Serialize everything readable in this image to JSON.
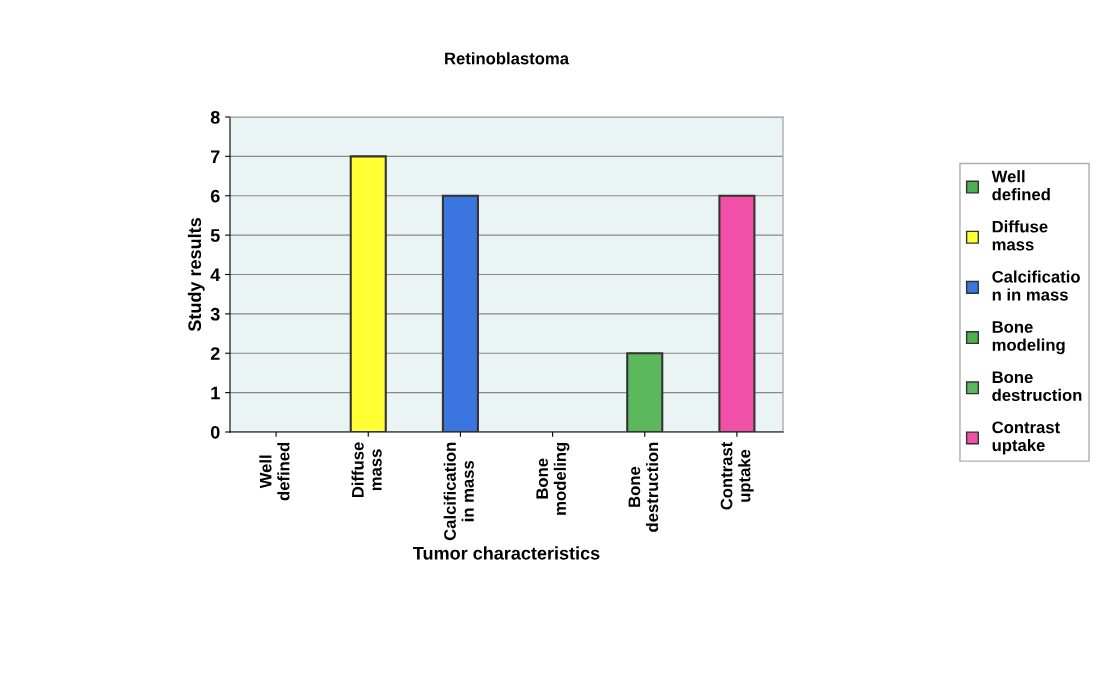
{
  "chart_data": {
    "type": "bar",
    "title": "Retinoblastoma",
    "xlabel": "Tumor characteristics",
    "ylabel": "Study results",
    "categories": [
      "Well defined",
      "Diffuse mass",
      "Calcification in mass",
      "Bone modeling",
      "Bone destruction",
      "Contrast uptake"
    ],
    "stacked": true,
    "series": [
      {
        "name": "Well defined",
        "color": "#4caf50",
        "values": [
          0,
          null,
          null,
          null,
          null,
          null
        ]
      },
      {
        "name": "Diffuse mass",
        "color": "#ffff33",
        "values": [
          null,
          7,
          null,
          null,
          null,
          null
        ]
      },
      {
        "name": "Calcification in mass",
        "color": "#3a75e0",
        "values": [
          null,
          null,
          6,
          null,
          null,
          null
        ]
      },
      {
        "name": "Bone modeling",
        "color": "#4caf50",
        "values": [
          null,
          null,
          null,
          0,
          null,
          null
        ]
      },
      {
        "name": "Bone destruction",
        "color": "#5cb85c",
        "values": [
          null,
          null,
          null,
          null,
          2,
          null
        ]
      },
      {
        "name": "Contrast uptake",
        "color": "#f050a8",
        "values": [
          null,
          null,
          null,
          null,
          null,
          6
        ]
      }
    ],
    "ylim": [
      0,
      8
    ],
    "yticks": [
      0,
      1,
      2,
      3,
      4,
      5,
      6,
      7,
      8
    ],
    "grid": "y",
    "legend": "right"
  }
}
